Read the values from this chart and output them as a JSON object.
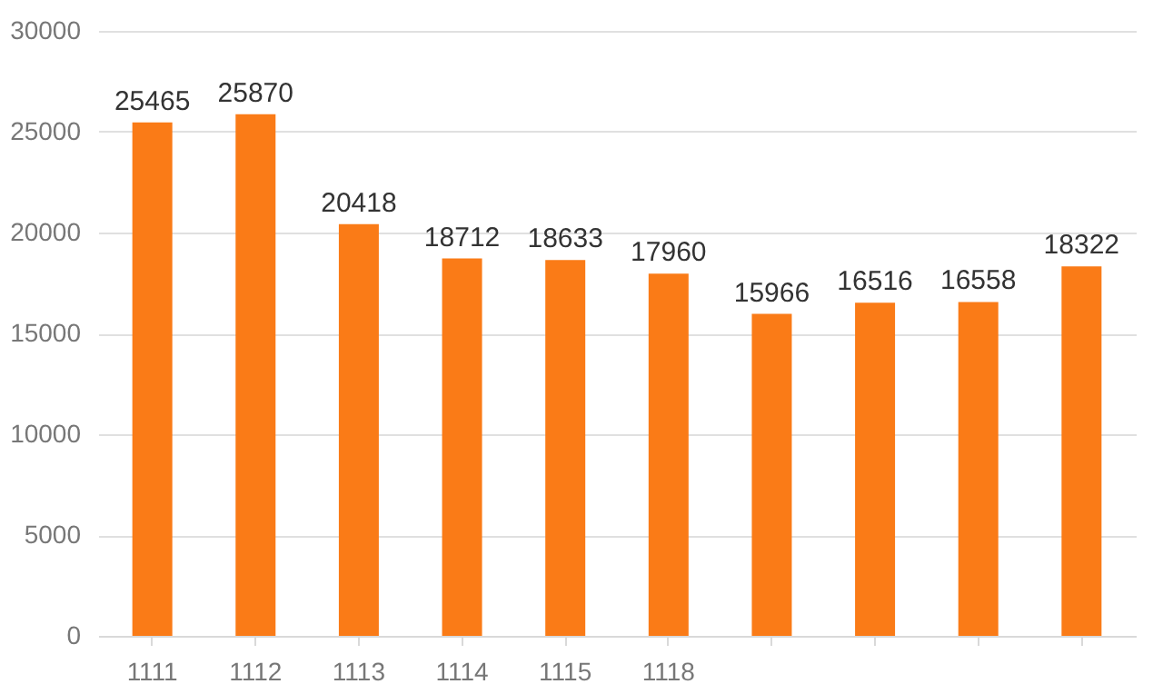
{
  "chart_data": {
    "type": "bar",
    "categories": [
      "1111",
      "1112",
      "1113",
      "1114",
      "1115",
      "1118",
      null,
      null,
      null,
      null
    ],
    "values": [
      25465,
      25870,
      20418,
      18712,
      18633,
      17960,
      15966,
      16516,
      16558,
      18322
    ],
    "color": "#fa7b17",
    "ylim": [
      0,
      30000
    ],
    "yticks": [
      0,
      5000,
      10000,
      15000,
      20000,
      25000,
      30000
    ],
    "grid": "y",
    "data_labels": true
  }
}
